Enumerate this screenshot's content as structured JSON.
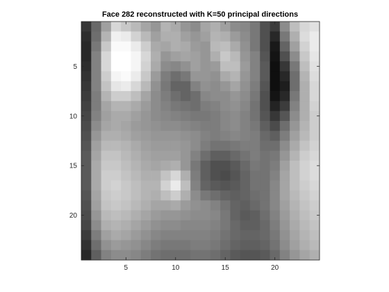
{
  "chart_data": {
    "type": "heatmap",
    "title": "Face 282 reconstructed with K=50 principal directions",
    "colormap": "gray",
    "xlabel": "",
    "ylabel": "",
    "xlim": [
      0.5,
      24.5
    ],
    "ylim": [
      0.5,
      24.5
    ],
    "y_direction": "reverse",
    "grid": false,
    "x_ticks": [
      5,
      10,
      15,
      20
    ],
    "y_ticks": [
      5,
      10,
      15,
      20
    ],
    "rows": 24,
    "cols": 24,
    "value_range": [
      0,
      255
    ],
    "values": [
      [
        55,
        105,
        160,
        215,
        200,
        185,
        165,
        150,
        180,
        170,
        150,
        140,
        165,
        175,
        160,
        140,
        135,
        120,
        80,
        60,
        140,
        190,
        215,
        225
      ],
      [
        45,
        110,
        180,
        240,
        235,
        210,
        185,
        160,
        175,
        175,
        160,
        150,
        160,
        180,
        175,
        155,
        140,
        120,
        80,
        40,
        120,
        175,
        220,
        235
      ],
      [
        40,
        120,
        200,
        250,
        250,
        235,
        205,
        170,
        165,
        175,
        170,
        155,
        150,
        185,
        190,
        170,
        145,
        120,
        80,
        25,
        100,
        160,
        210,
        235
      ],
      [
        40,
        130,
        215,
        255,
        255,
        245,
        215,
        175,
        150,
        160,
        165,
        160,
        150,
        175,
        200,
        185,
        150,
        130,
        85,
        20,
        80,
        140,
        200,
        230
      ],
      [
        45,
        130,
        215,
        255,
        255,
        245,
        210,
        170,
        140,
        135,
        145,
        160,
        150,
        155,
        190,
        190,
        155,
        130,
        90,
        15,
        55,
        120,
        190,
        225
      ],
      [
        50,
        130,
        205,
        245,
        250,
        235,
        200,
        155,
        125,
        110,
        120,
        150,
        150,
        145,
        170,
        180,
        150,
        130,
        90,
        15,
        40,
        110,
        180,
        220
      ],
      [
        55,
        130,
        195,
        230,
        235,
        215,
        185,
        145,
        120,
        100,
        100,
        130,
        145,
        140,
        150,
        165,
        145,
        125,
        85,
        15,
        30,
        110,
        175,
        215
      ],
      [
        60,
        125,
        180,
        205,
        205,
        190,
        165,
        140,
        125,
        110,
        100,
        110,
        135,
        140,
        140,
        150,
        140,
        120,
        80,
        20,
        40,
        120,
        175,
        215
      ],
      [
        65,
        125,
        165,
        180,
        180,
        170,
        155,
        140,
        130,
        120,
        115,
        110,
        125,
        130,
        140,
        145,
        135,
        115,
        80,
        35,
        60,
        130,
        175,
        210
      ],
      [
        70,
        130,
        160,
        170,
        170,
        160,
        150,
        140,
        135,
        130,
        125,
        120,
        120,
        125,
        135,
        140,
        130,
        115,
        85,
        55,
        85,
        140,
        175,
        205
      ],
      [
        75,
        140,
        165,
        170,
        165,
        155,
        150,
        145,
        140,
        140,
        135,
        130,
        125,
        125,
        135,
        140,
        130,
        120,
        95,
        75,
        110,
        150,
        180,
        205
      ],
      [
        80,
        150,
        175,
        175,
        170,
        160,
        155,
        150,
        150,
        150,
        145,
        140,
        130,
        125,
        130,
        135,
        130,
        125,
        105,
        95,
        125,
        160,
        185,
        205
      ],
      [
        85,
        160,
        185,
        185,
        180,
        170,
        160,
        155,
        155,
        155,
        150,
        140,
        125,
        115,
        115,
        120,
        125,
        125,
        110,
        110,
        140,
        170,
        195,
        210
      ],
      [
        90,
        165,
        195,
        195,
        185,
        175,
        165,
        160,
        160,
        160,
        150,
        130,
        110,
        95,
        95,
        105,
        115,
        125,
        115,
        120,
        150,
        180,
        205,
        215
      ],
      [
        90,
        170,
        200,
        200,
        190,
        180,
        170,
        165,
        170,
        175,
        150,
        120,
        95,
        80,
        80,
        90,
        105,
        120,
        115,
        125,
        160,
        190,
        210,
        220
      ],
      [
        90,
        170,
        205,
        205,
        195,
        185,
        175,
        175,
        195,
        215,
        175,
        125,
        95,
        80,
        75,
        85,
        100,
        115,
        115,
        130,
        165,
        190,
        210,
        220
      ],
      [
        90,
        170,
        205,
        210,
        200,
        190,
        180,
        180,
        210,
        235,
        190,
        130,
        100,
        90,
        85,
        90,
        100,
        115,
        115,
        135,
        165,
        190,
        205,
        215
      ],
      [
        85,
        165,
        200,
        205,
        200,
        190,
        180,
        175,
        190,
        205,
        175,
        140,
        120,
        110,
        100,
        95,
        100,
        110,
        115,
        135,
        165,
        185,
        200,
        210
      ],
      [
        80,
        160,
        195,
        200,
        195,
        185,
        175,
        165,
        165,
        170,
        155,
        145,
        140,
        130,
        115,
        100,
        95,
        105,
        115,
        135,
        160,
        180,
        195,
        205
      ],
      [
        75,
        150,
        185,
        190,
        185,
        175,
        165,
        155,
        150,
        150,
        145,
        140,
        140,
        135,
        120,
        100,
        90,
        95,
        110,
        130,
        155,
        175,
        190,
        200
      ],
      [
        70,
        140,
        175,
        180,
        175,
        165,
        155,
        145,
        140,
        140,
        135,
        135,
        135,
        130,
        120,
        105,
        95,
        95,
        105,
        125,
        150,
        170,
        185,
        195
      ],
      [
        60,
        125,
        160,
        170,
        165,
        155,
        145,
        135,
        130,
        130,
        130,
        130,
        130,
        125,
        115,
        105,
        100,
        100,
        105,
        120,
        145,
        165,
        180,
        190
      ],
      [
        50,
        110,
        145,
        155,
        150,
        145,
        135,
        125,
        120,
        120,
        120,
        125,
        125,
        120,
        110,
        100,
        95,
        95,
        100,
        115,
        140,
        160,
        175,
        185
      ],
      [
        40,
        95,
        130,
        140,
        140,
        135,
        125,
        115,
        110,
        110,
        110,
        115,
        115,
        110,
        100,
        90,
        85,
        85,
        90,
        105,
        130,
        150,
        165,
        175
      ]
    ]
  }
}
